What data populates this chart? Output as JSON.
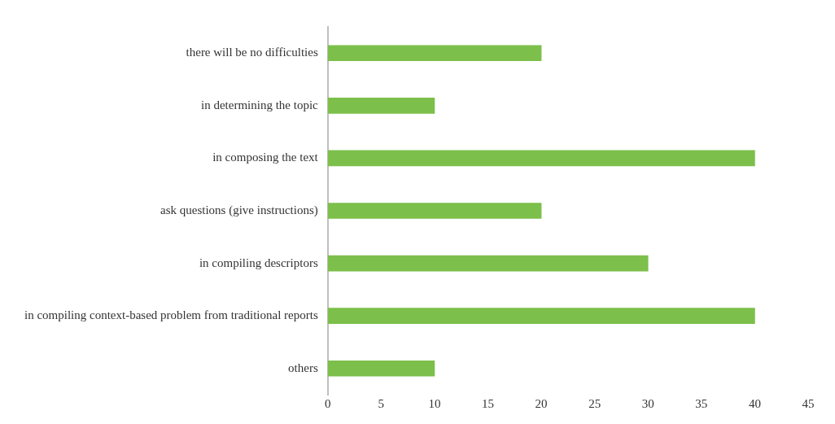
{
  "chart_data": {
    "type": "bar",
    "orientation": "horizontal",
    "categories": [
      "there will be no difficulties",
      "in determining the topic",
      "in composing the text",
      "ask questions (give instructions)",
      "in compiling descriptors",
      "in compiling context-based problem from traditional reports",
      "others"
    ],
    "values": [
      20,
      10,
      40,
      20,
      30,
      40,
      10
    ],
    "color": "#7cbf4a",
    "xlim": [
      0,
      45
    ],
    "xticks": [
      0,
      5,
      10,
      15,
      20,
      25,
      30,
      35,
      40,
      45
    ],
    "grid": false,
    "legend": false
  }
}
